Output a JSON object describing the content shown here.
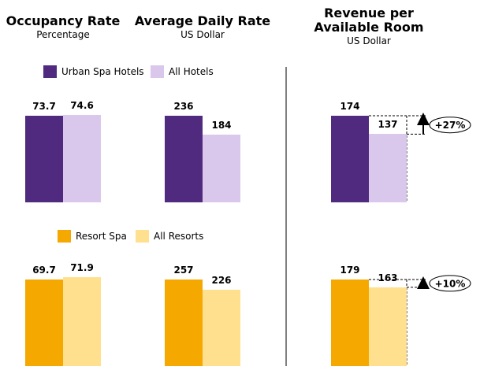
{
  "chart_data": {
    "type": "bar",
    "panels": [
      {
        "title": "Occupancy Rate",
        "subtitle": "Percentage"
      },
      {
        "title": "Average Daily Rate",
        "subtitle": "US Dollar"
      },
      {
        "title": "Revenue per Available Room",
        "subtitle": "US Dollar"
      }
    ],
    "groups": [
      {
        "series": [
          {
            "name": "Urban Spa Hotels",
            "color": "#4f2a7f",
            "values": [
              73.7,
              236,
              174
            ]
          },
          {
            "name": "All Hotels",
            "color": "#d9c8ec",
            "values": [
              74.6,
              184,
              137
            ]
          }
        ],
        "annotation": "+27%"
      },
      {
        "series": [
          {
            "name": "Resort Spa",
            "color": "#f5a800",
            "values": [
              69.7,
              257,
              179
            ]
          },
          {
            "name": "All Resorts",
            "color": "#ffe08f",
            "values": [
              71.9,
              226,
              163
            ]
          }
        ],
        "annotation": "+10%"
      }
    ]
  }
}
